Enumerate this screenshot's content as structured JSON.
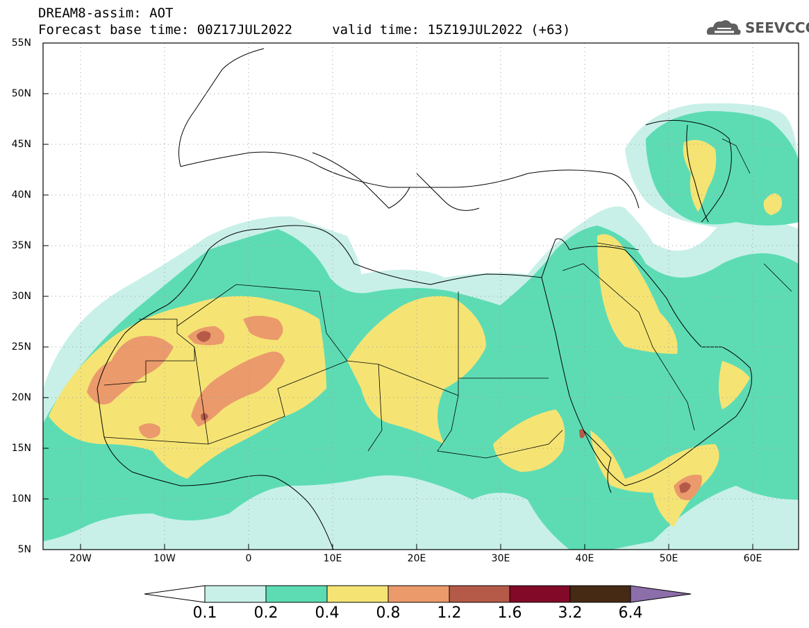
{
  "title": {
    "line1": "DREAM8-assim: AOT",
    "line2": "Forecast base time: 00Z17JUL2022     valid time: 15Z19JUL2022 (+63)"
  },
  "logo": {
    "text": "SEEVCCC",
    "icon": "cloud-icon"
  },
  "map": {
    "lat_labels": [
      "55N",
      "50N",
      "45N",
      "40N",
      "35N",
      "30N",
      "25N",
      "20N",
      "15N",
      "10N",
      "5N"
    ],
    "lon_labels": [
      "20W",
      "10W",
      "0",
      "10E",
      "20E",
      "30E",
      "40E",
      "50E",
      "60E"
    ],
    "lat_range": [
      5,
      55
    ],
    "lon_range": [
      -25,
      65
    ],
    "grid": "dotted"
  },
  "colorbar": {
    "labels": [
      "0.1",
      "0.2",
      "0.4",
      "0.8",
      "1.2",
      "1.6",
      "3.2",
      "6.4"
    ],
    "colors": [
      "#c8f0e8",
      "#5ddcb4",
      "#f5e474",
      "#eb9a6c",
      "#b55a48",
      "#820a28",
      "#462a14",
      "#8c6eaa"
    ],
    "under_color": "#ffffff"
  },
  "palette": {
    "c01": "#c8f0e8",
    "c02": "#5ddcb4",
    "c04": "#f5e474",
    "c08": "#eb9a6c",
    "c12": "#b55a48"
  }
}
